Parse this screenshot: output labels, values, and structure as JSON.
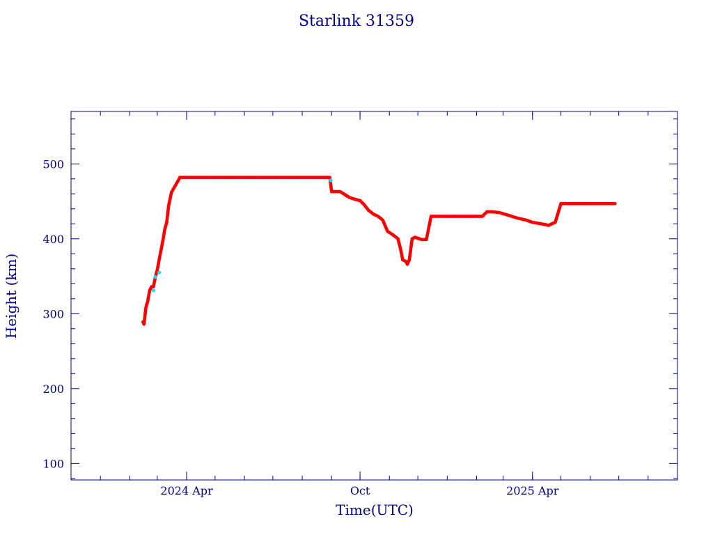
{
  "chart_data": {
    "type": "line",
    "title": "Starlink 31359",
    "xlabel": "Time(UTC)",
    "ylabel": "Height (km)",
    "xlim": [
      "2023-12-01",
      "2025-09-01"
    ],
    "ylim": [
      78,
      570
    ],
    "x_ticks": [
      {
        "date": "2024-04-01",
        "label": "2024 Apr"
      },
      {
        "date": "2024-10-01",
        "label": "Oct"
      },
      {
        "date": "2025-04-01",
        "label": "2025 Apr"
      }
    ],
    "y_ticks": [
      100,
      200,
      300,
      400,
      500
    ],
    "grid": false,
    "colors": {
      "axis": "#00008b",
      "line": "#00008b",
      "marker": "#ff0000",
      "marker_alt": "#00e5ff"
    },
    "series": [
      {
        "name": "",
        "x": [
          "2024-02-15",
          "2024-02-16",
          "2024-02-18",
          "2024-02-20",
          "2024-02-22",
          "2024-02-24",
          "2024-02-26",
          "2024-02-28",
          "2024-03-01",
          "2024-03-03",
          "2024-03-05",
          "2024-03-07",
          "2024-03-09",
          "2024-03-11",
          "2024-03-13",
          "2024-03-16",
          "2024-03-25",
          "2024-04-15",
          "2024-05-01",
          "2024-05-15",
          "2024-06-01",
          "2024-06-15",
          "2024-07-01",
          "2024-07-15",
          "2024-08-01",
          "2024-08-15",
          "2024-08-30",
          "2024-08-31",
          "2024-09-01",
          "2024-09-05",
          "2024-09-10",
          "2024-09-15",
          "2024-09-20",
          "2024-09-25",
          "2024-10-01",
          "2024-10-05",
          "2024-10-10",
          "2024-10-15",
          "2024-10-20",
          "2024-10-25",
          "2024-10-30",
          "2024-11-05",
          "2024-11-10",
          "2024-11-13",
          "2024-11-15",
          "2024-11-18",
          "2024-11-20",
          "2024-11-22",
          "2024-11-25",
          "2024-11-28",
          "2024-12-05",
          "2024-12-10",
          "2024-12-15",
          "2024-12-20",
          "2025-01-01",
          "2025-01-15",
          "2025-02-01",
          "2025-02-07",
          "2025-02-12",
          "2025-02-18",
          "2025-02-25",
          "2025-03-05",
          "2025-03-15",
          "2025-03-25",
          "2025-04-01",
          "2025-04-10",
          "2025-04-18",
          "2025-04-25",
          "2025-05-01",
          "2025-05-15",
          "2025-06-01",
          "2025-06-15",
          "2025-06-27"
        ],
        "y": [
          289,
          286,
          308,
          317,
          331,
          336,
          336,
          349,
          358,
          372,
          385,
          398,
          413,
          422,
          444,
          462,
          482,
          482,
          482,
          482,
          482,
          482,
          482,
          482,
          482,
          482,
          482,
          473,
          463,
          463,
          463,
          459,
          455,
          453,
          451,
          446,
          438,
          433,
          430,
          425,
          410,
          405,
          400,
          385,
          372,
          370,
          366,
          372,
          400,
          402,
          399,
          399,
          430,
          430,
          430,
          430,
          430,
          430,
          436,
          436,
          435,
          432,
          428,
          425,
          422,
          420,
          418,
          422,
          447,
          447,
          447,
          447,
          447
        ]
      }
    ]
  }
}
